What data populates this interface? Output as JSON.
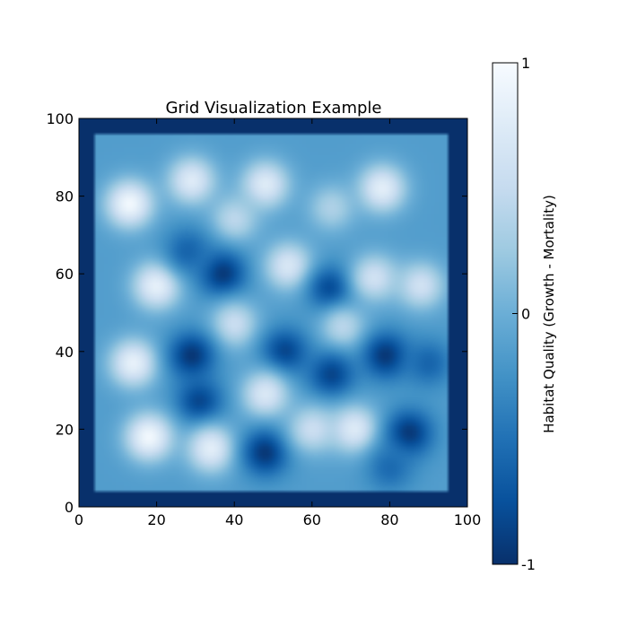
{
  "chart_data": {
    "type": "heatmap",
    "title": "Grid Visualization Example",
    "xlabel": "",
    "ylabel": "",
    "xlim": [
      0,
      100
    ],
    "ylim": [
      0,
      100
    ],
    "x_ticks": [
      "0",
      "20",
      "40",
      "60",
      "80",
      "100"
    ],
    "y_ticks": [
      "0",
      "20",
      "40",
      "60",
      "80",
      "100"
    ],
    "grid": false,
    "colormap": "Blues_r",
    "colormap_stops": [
      "#08306b",
      "#08519c",
      "#2171b5",
      "#4292c6",
      "#6baed6",
      "#9ecae1",
      "#c6dbef",
      "#deebf7",
      "#f7fbff"
    ],
    "value_range": [
      -1,
      1
    ],
    "border_value": -1,
    "interior_extent": {
      "x": [
        4,
        95
      ],
      "y": [
        4,
        96
      ]
    },
    "base_value": -0.15,
    "features": [
      {
        "x": 13,
        "y": 78,
        "value": 0.95
      },
      {
        "x": 29,
        "y": 84,
        "value": 0.75
      },
      {
        "x": 48,
        "y": 83,
        "value": 0.75
      },
      {
        "x": 78,
        "y": 82,
        "value": 0.8
      },
      {
        "x": 65,
        "y": 77,
        "value": 0.35
      },
      {
        "x": 40,
        "y": 74,
        "value": 0.45
      },
      {
        "x": 20,
        "y": 57,
        "value": 0.85
      },
      {
        "x": 37,
        "y": 60,
        "value": -0.95
      },
      {
        "x": 28,
        "y": 66,
        "value": -0.6
      },
      {
        "x": 54,
        "y": 62,
        "value": 0.7
      },
      {
        "x": 65,
        "y": 56,
        "value": -0.85
      },
      {
        "x": 76,
        "y": 59,
        "value": 0.6
      },
      {
        "x": 88,
        "y": 57,
        "value": 0.6
      },
      {
        "x": 40,
        "y": 47,
        "value": 0.55
      },
      {
        "x": 68,
        "y": 46,
        "value": 0.45
      },
      {
        "x": 14,
        "y": 37,
        "value": 0.85
      },
      {
        "x": 29,
        "y": 39,
        "value": -0.95
      },
      {
        "x": 53,
        "y": 40,
        "value": -0.85
      },
      {
        "x": 79,
        "y": 39,
        "value": -0.95
      },
      {
        "x": 90,
        "y": 37,
        "value": -0.6
      },
      {
        "x": 48,
        "y": 29,
        "value": 0.7
      },
      {
        "x": 65,
        "y": 34,
        "value": -0.85
      },
      {
        "x": 31,
        "y": 27,
        "value": -0.85
      },
      {
        "x": 18,
        "y": 18,
        "value": 0.95
      },
      {
        "x": 34,
        "y": 15,
        "value": 0.8
      },
      {
        "x": 48,
        "y": 14,
        "value": -0.95
      },
      {
        "x": 60,
        "y": 20,
        "value": 0.55
      },
      {
        "x": 71,
        "y": 20,
        "value": 0.75
      },
      {
        "x": 85,
        "y": 19,
        "value": -0.95
      },
      {
        "x": 80,
        "y": 10,
        "value": -0.55
      }
    ],
    "colorbar": {
      "label": "Habitat Quality (Growth - Mortality)",
      "ticks": [
        "-1",
        "0",
        "1"
      ]
    }
  }
}
